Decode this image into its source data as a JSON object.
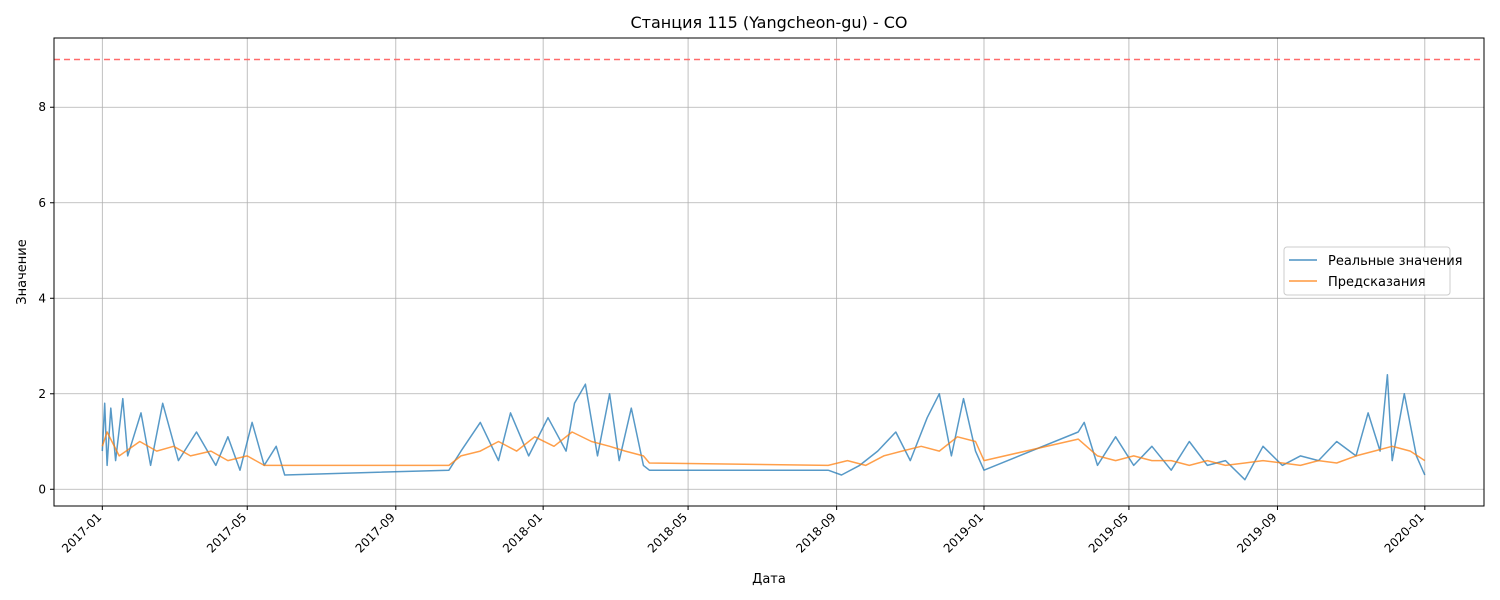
{
  "chart_data": {
    "type": "line",
    "title": "Станция 115 (Yangcheon-gu) - CO",
    "xlabel": "Дата",
    "ylabel": "Значение",
    "xlim": [
      "2016-11-22",
      "2020-02-19"
    ],
    "ylim": [
      -0.35,
      9.45
    ],
    "x_ticks": [
      "2017-01",
      "2017-05",
      "2017-09",
      "2018-01",
      "2018-05",
      "2018-09",
      "2019-01",
      "2019-05",
      "2019-09",
      "2020-01"
    ],
    "y_ticks": [
      0,
      2,
      4,
      6,
      8
    ],
    "grid": true,
    "legend": "center-right",
    "threshold": {
      "value": 9,
      "color": "#ff6b6b",
      "style": "dashed"
    },
    "series": [
      {
        "name": "Реальные значения",
        "color": "#1f77b4",
        "x": [
          "2017-01-01",
          "2017-01-03",
          "2017-01-05",
          "2017-01-08",
          "2017-01-12",
          "2017-01-18",
          "2017-01-22",
          "2017-02-02",
          "2017-02-10",
          "2017-02-20",
          "2017-03-05",
          "2017-03-20",
          "2017-04-05",
          "2017-04-15",
          "2017-04-25",
          "2017-05-05",
          "2017-05-15",
          "2017-05-25",
          "2017-06-01",
          "2017-10-15",
          "2017-10-25",
          "2017-11-10",
          "2017-11-25",
          "2017-12-05",
          "2017-12-20",
          "2018-01-05",
          "2018-01-20",
          "2018-01-27",
          "2018-02-05",
          "2018-02-15",
          "2018-02-25",
          "2018-03-05",
          "2018-03-15",
          "2018-03-25",
          "2018-03-30",
          "2018-08-25",
          "2018-09-05",
          "2018-09-20",
          "2018-10-05",
          "2018-10-20",
          "2018-11-01",
          "2018-11-15",
          "2018-11-25",
          "2018-12-05",
          "2018-12-15",
          "2018-12-25",
          "2019-01-01",
          "2019-03-20",
          "2019-03-25",
          "2019-04-05",
          "2019-04-20",
          "2019-05-05",
          "2019-05-20",
          "2019-06-05",
          "2019-06-20",
          "2019-07-05",
          "2019-07-20",
          "2019-08-05",
          "2019-08-20",
          "2019-09-05",
          "2019-09-20",
          "2019-10-05",
          "2019-10-20",
          "2019-11-05",
          "2019-11-15",
          "2019-11-25",
          "2019-12-01",
          "2019-12-05",
          "2019-12-15",
          "2019-12-25",
          "2020-01-01"
        ],
        "y": [
          0.8,
          1.8,
          0.5,
          1.7,
          0.6,
          1.9,
          0.7,
          1.6,
          0.5,
          1.8,
          0.6,
          1.2,
          0.5,
          1.1,
          0.4,
          1.4,
          0.5,
          0.9,
          0.3,
          0.4,
          0.8,
          1.4,
          0.6,
          1.6,
          0.7,
          1.5,
          0.8,
          1.8,
          2.2,
          0.7,
          2.0,
          0.6,
          1.7,
          0.5,
          0.4,
          0.4,
          0.3,
          0.5,
          0.8,
          1.2,
          0.6,
          1.5,
          2.0,
          0.7,
          1.9,
          0.8,
          0.4,
          1.2,
          1.4,
          0.5,
          1.1,
          0.5,
          0.9,
          0.4,
          1.0,
          0.5,
          0.6,
          0.2,
          0.9,
          0.5,
          0.7,
          0.6,
          1.0,
          0.7,
          1.6,
          0.8,
          2.4,
          0.6,
          2.0,
          0.7,
          0.3
        ]
      },
      {
        "name": "Предсказания",
        "color": "#ff7f0e",
        "x": [
          "2017-01-01",
          "2017-01-05",
          "2017-01-15",
          "2017-02-01",
          "2017-02-15",
          "2017-03-01",
          "2017-03-15",
          "2017-04-01",
          "2017-04-15",
          "2017-05-01",
          "2017-05-15",
          "2017-06-01",
          "2017-10-15",
          "2017-10-25",
          "2017-11-10",
          "2017-11-25",
          "2017-12-10",
          "2017-12-25",
          "2018-01-10",
          "2018-01-25",
          "2018-02-10",
          "2018-02-25",
          "2018-03-10",
          "2018-03-25",
          "2018-03-30",
          "2018-08-25",
          "2018-09-10",
          "2018-09-25",
          "2018-10-10",
          "2018-10-25",
          "2018-11-10",
          "2018-11-25",
          "2018-12-10",
          "2018-12-25",
          "2019-01-01",
          "2019-03-20",
          "2019-04-05",
          "2019-04-20",
          "2019-05-05",
          "2019-05-20",
          "2019-06-05",
          "2019-06-20",
          "2019-07-05",
          "2019-07-20",
          "2019-08-05",
          "2019-08-20",
          "2019-09-05",
          "2019-09-20",
          "2019-10-05",
          "2019-10-20",
          "2019-11-05",
          "2019-11-20",
          "2019-12-05",
          "2019-12-20",
          "2020-01-01"
        ],
        "y": [
          0.9,
          1.2,
          0.7,
          1.0,
          0.8,
          0.9,
          0.7,
          0.8,
          0.6,
          0.7,
          0.5,
          0.5,
          0.5,
          0.7,
          0.8,
          1.0,
          0.8,
          1.1,
          0.9,
          1.2,
          1.0,
          0.9,
          0.8,
          0.7,
          0.55,
          0.5,
          0.6,
          0.5,
          0.7,
          0.8,
          0.9,
          0.8,
          1.1,
          1.0,
          0.6,
          1.05,
          0.7,
          0.6,
          0.7,
          0.6,
          0.6,
          0.5,
          0.6,
          0.5,
          0.55,
          0.6,
          0.55,
          0.5,
          0.6,
          0.55,
          0.7,
          0.8,
          0.9,
          0.8,
          0.6
        ]
      }
    ]
  }
}
